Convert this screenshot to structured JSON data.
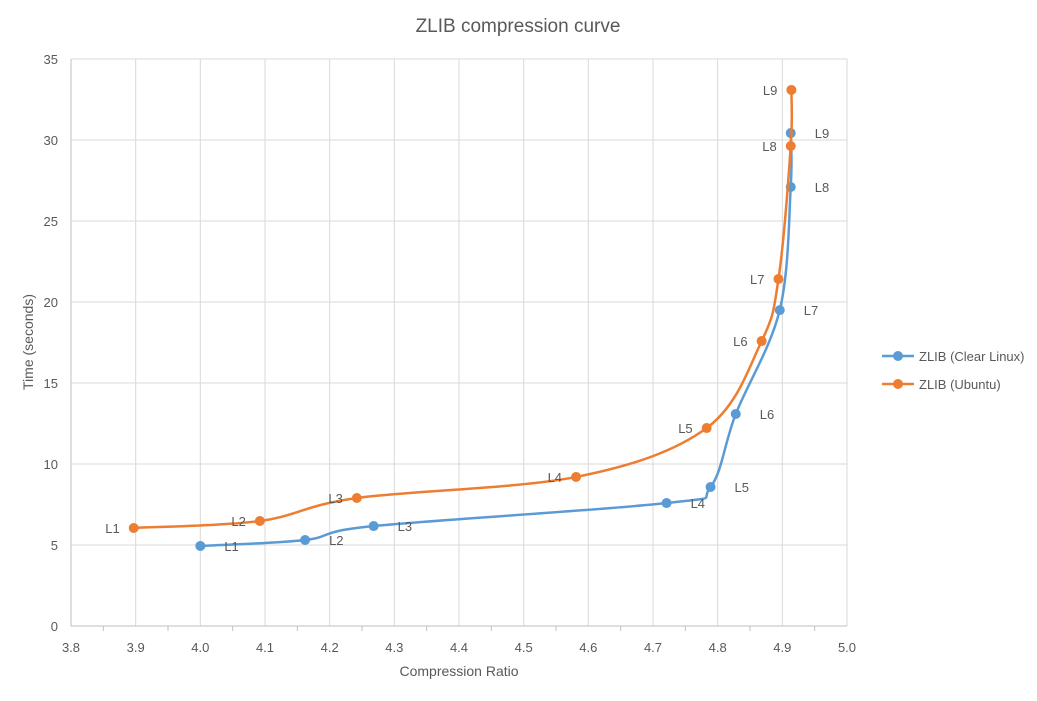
{
  "chart_data": {
    "type": "scatter",
    "title": "ZLIB compression curve",
    "xlabel": "Compression Ratio",
    "ylabel": "Time (seconds)",
    "xlim": [
      3.8,
      5.0
    ],
    "ylim": [
      0,
      35
    ],
    "xticks": [
      "3.8",
      "3.9",
      "4.0",
      "4.1",
      "4.2",
      "4.3",
      "4.4",
      "4.5",
      "4.6",
      "4.7",
      "4.8",
      "4.9",
      "5.0"
    ],
    "yticks": [
      "0",
      "5",
      "10",
      "15",
      "20",
      "25",
      "30",
      "35"
    ],
    "grid": true,
    "smooth_lines": true,
    "legend_position": "right",
    "series": [
      {
        "name": "ZLIB (Clear Linux)",
        "color": "#5B9BD5",
        "labels": [
          "L1",
          "L2",
          "L3",
          "L4",
          "L5",
          "L6",
          "L7",
          "L8",
          "L9"
        ],
        "x": [
          4.0,
          4.162,
          4.268,
          4.721,
          4.789,
          4.828,
          4.896,
          4.913,
          4.913
        ],
        "y": [
          4.94,
          5.31,
          6.17,
          7.59,
          8.58,
          13.09,
          19.5,
          27.1,
          30.43
        ]
      },
      {
        "name": "ZLIB (Ubuntu)",
        "color": "#ED7D31",
        "labels": [
          "L1",
          "L2",
          "L3",
          "L4",
          "L5",
          "L6",
          "L7",
          "L8",
          "L9"
        ],
        "x": [
          3.897,
          4.092,
          4.242,
          4.581,
          4.783,
          4.868,
          4.894,
          4.913,
          4.914
        ],
        "y": [
          6.05,
          6.48,
          7.9,
          9.2,
          12.22,
          17.59,
          21.42,
          29.63,
          33.09
        ]
      }
    ]
  }
}
